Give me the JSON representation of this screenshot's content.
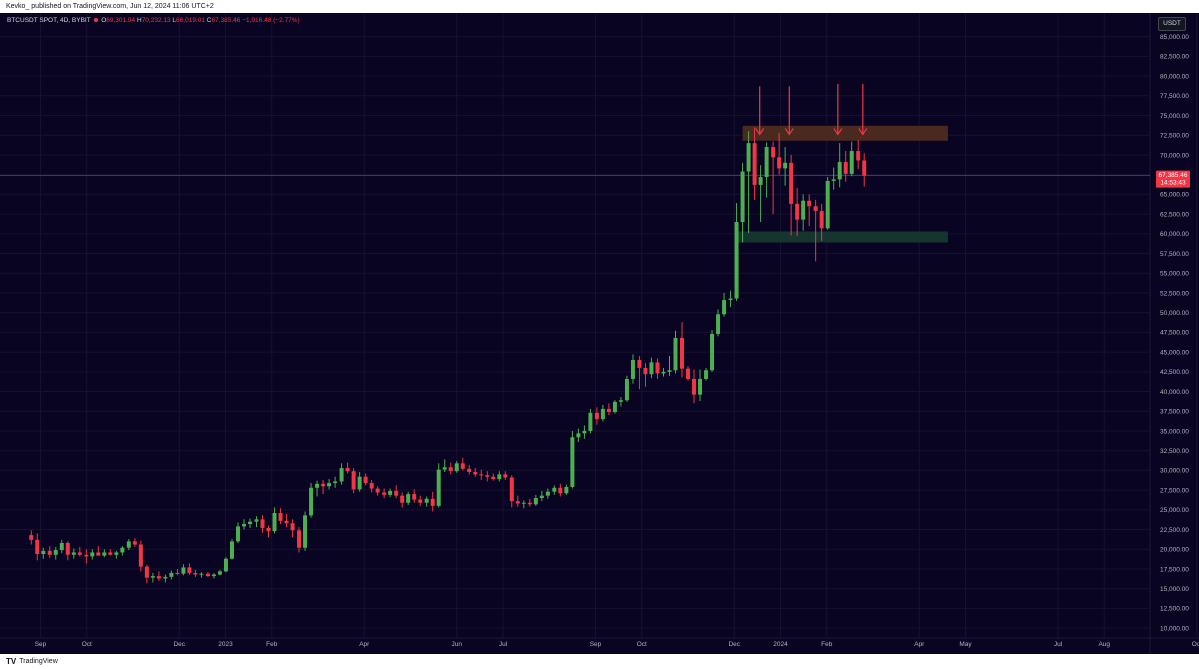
{
  "header": {
    "publisher": "Kevko_ published on TradingView.com, Jun 12, 2024 11:06 UTC+2"
  },
  "legend": {
    "symbol": "BTCUSDT SPOT, 4D, BYBIT",
    "o_label": "O",
    "o_value": "69,301.94",
    "h_label": "H",
    "h_value": "70,232.13",
    "l_label": "L",
    "l_value": "66,019.01",
    "c_label": "C",
    "c_value": "67,385.46",
    "change": "−1,916.48 (−2.77%)"
  },
  "currency_button": "USDT",
  "last_price": {
    "value": "67,385.46",
    "countdown": "14:53:43"
  },
  "footer": {
    "logo_mark": "TV",
    "logo_text": "TradingView"
  },
  "colors": {
    "background": "#080422",
    "up": "#4caf50",
    "down": "#f23645",
    "resistance_zone": "#4a2a1f",
    "support_zone": "#16352f",
    "arrows": "#f23645"
  },
  "chart_data": {
    "type": "candlestick",
    "symbol": "BTCUSDT",
    "timeframe": "4D",
    "ylim": [
      8750,
      88000
    ],
    "y_ticks": [
      10000,
      12500,
      15000,
      17500,
      20000,
      22500,
      25000,
      27500,
      30000,
      32500,
      35000,
      37500,
      40000,
      42500,
      45000,
      47500,
      50000,
      52500,
      55000,
      57500,
      60000,
      62500,
      65000,
      67500,
      70000,
      72500,
      75000,
      77500,
      80000,
      82500,
      85000
    ],
    "y_tick_labels": [
      "10,000.00",
      "12,500.00",
      "15,000.00",
      "17,500.00",
      "20,000.00",
      "22,500.00",
      "25,000.00",
      "27,500.00",
      "30,000.00",
      "32,500.00",
      "35,000.00",
      "37,500.00",
      "40,000.00",
      "42,500.00",
      "45,000.00",
      "47,500.00",
      "50,000.00",
      "52,500.00",
      "55,000.00",
      "57,500.00",
      "60,000.00",
      "62,500.00",
      "65,000.00",
      "67,500.00",
      "70,000.00",
      "72,500.00",
      "75,000.00",
      "77,500.00",
      "80,000.00",
      "82,500.00",
      "85,000.00"
    ],
    "x_labels": [
      {
        "label": "Sep",
        "month": 0
      },
      {
        "label": "Oct",
        "month": 1
      },
      {
        "label": "Dec",
        "month": 3
      },
      {
        "label": "2023",
        "month": 4
      },
      {
        "label": "Feb",
        "month": 5
      },
      {
        "label": "Apr",
        "month": 7
      },
      {
        "label": "Jun",
        "month": 9
      },
      {
        "label": "Jul",
        "month": 10
      },
      {
        "label": "Sep",
        "month": 12
      },
      {
        "label": "Oct",
        "month": 13
      },
      {
        "label": "Dec",
        "month": 15
      },
      {
        "label": "2024",
        "month": 16
      },
      {
        "label": "Feb",
        "month": 17
      },
      {
        "label": "Apr",
        "month": 19
      },
      {
        "label": "May",
        "month": 20
      },
      {
        "label": "Jul",
        "month": 22
      },
      {
        "label": "Aug",
        "month": 23
      },
      {
        "label": "Oct",
        "month": 25
      }
    ],
    "x_month_start": "2022-09",
    "candles": [
      {
        "m": -0.2,
        "o": 21800,
        "h": 22400,
        "l": 20600,
        "c": 21200
      },
      {
        "m": -0.07,
        "o": 21200,
        "h": 22000,
        "l": 18600,
        "c": 19400
      },
      {
        "m": 0.06,
        "o": 19400,
        "h": 20200,
        "l": 18800,
        "c": 19800
      },
      {
        "m": 0.2,
        "o": 19800,
        "h": 20400,
        "l": 18900,
        "c": 19300
      },
      {
        "m": 0.33,
        "o": 19300,
        "h": 20300,
        "l": 18700,
        "c": 19900
      },
      {
        "m": 0.46,
        "o": 19900,
        "h": 21200,
        "l": 19500,
        "c": 20800
      },
      {
        "m": 0.59,
        "o": 20800,
        "h": 21000,
        "l": 18600,
        "c": 19300
      },
      {
        "m": 0.72,
        "o": 19300,
        "h": 20100,
        "l": 18800,
        "c": 19600
      },
      {
        "m": 0.85,
        "o": 19600,
        "h": 20300,
        "l": 19100,
        "c": 19300
      },
      {
        "m": 0.99,
        "o": 19300,
        "h": 20000,
        "l": 18200,
        "c": 19100
      },
      {
        "m": 1.12,
        "o": 19100,
        "h": 20000,
        "l": 18700,
        "c": 19600
      },
      {
        "m": 1.25,
        "o": 19600,
        "h": 20400,
        "l": 19200,
        "c": 19200
      },
      {
        "m": 1.38,
        "o": 19200,
        "h": 20000,
        "l": 19000,
        "c": 19600
      },
      {
        "m": 1.51,
        "o": 19600,
        "h": 20000,
        "l": 19200,
        "c": 19300
      },
      {
        "m": 1.64,
        "o": 19300,
        "h": 19800,
        "l": 18800,
        "c": 19600
      },
      {
        "m": 1.77,
        "o": 19600,
        "h": 20400,
        "l": 19200,
        "c": 20200
      },
      {
        "m": 1.91,
        "o": 20200,
        "h": 21300,
        "l": 19900,
        "c": 21000
      },
      {
        "m": 2.04,
        "o": 21000,
        "h": 21400,
        "l": 20300,
        "c": 20600
      },
      {
        "m": 2.17,
        "o": 20600,
        "h": 21100,
        "l": 17200,
        "c": 17800
      },
      {
        "m": 2.3,
        "o": 17800,
        "h": 18000,
        "l": 15700,
        "c": 16400
      },
      {
        "m": 2.43,
        "o": 16400,
        "h": 17000,
        "l": 15800,
        "c": 16600
      },
      {
        "m": 2.56,
        "o": 16600,
        "h": 17200,
        "l": 16000,
        "c": 16300
      },
      {
        "m": 2.7,
        "o": 16300,
        "h": 16800,
        "l": 15800,
        "c": 16500
      },
      {
        "m": 2.83,
        "o": 16500,
        "h": 17300,
        "l": 16200,
        "c": 17000
      },
      {
        "m": 2.96,
        "o": 17000,
        "h": 17500,
        "l": 16700,
        "c": 16900
      },
      {
        "m": 3.09,
        "o": 16900,
        "h": 18100,
        "l": 16700,
        "c": 17700
      },
      {
        "m": 3.22,
        "o": 17700,
        "h": 18200,
        "l": 16800,
        "c": 17000
      },
      {
        "m": 3.35,
        "o": 17000,
        "h": 17400,
        "l": 16500,
        "c": 16800
      },
      {
        "m": 3.48,
        "o": 16800,
        "h": 17100,
        "l": 16400,
        "c": 16900
      },
      {
        "m": 3.62,
        "o": 16900,
        "h": 17100,
        "l": 16500,
        "c": 16600
      },
      {
        "m": 3.75,
        "o": 16600,
        "h": 17000,
        "l": 16300,
        "c": 16800
      },
      {
        "m": 3.88,
        "o": 16800,
        "h": 17400,
        "l": 16700,
        "c": 17200
      },
      {
        "m": 4.01,
        "o": 17200,
        "h": 19000,
        "l": 17100,
        "c": 18800
      },
      {
        "m": 4.14,
        "o": 18800,
        "h": 21300,
        "l": 18700,
        "c": 21000
      },
      {
        "m": 4.27,
        "o": 21000,
        "h": 23400,
        "l": 20800,
        "c": 22900
      },
      {
        "m": 4.4,
        "o": 22900,
        "h": 23800,
        "l": 22500,
        "c": 23200
      },
      {
        "m": 4.53,
        "o": 23200,
        "h": 23900,
        "l": 22700,
        "c": 23500
      },
      {
        "m": 4.67,
        "o": 23500,
        "h": 24200,
        "l": 22800,
        "c": 23800
      },
      {
        "m": 4.8,
        "o": 23800,
        "h": 24300,
        "l": 22100,
        "c": 22700
      },
      {
        "m": 4.93,
        "o": 22700,
        "h": 23000,
        "l": 21500,
        "c": 22300
      },
      {
        "m": 5.06,
        "o": 22300,
        "h": 25300,
        "l": 22000,
        "c": 24600
      },
      {
        "m": 5.19,
        "o": 24600,
        "h": 25200,
        "l": 23200,
        "c": 23600
      },
      {
        "m": 5.32,
        "o": 23600,
        "h": 24500,
        "l": 22800,
        "c": 23300
      },
      {
        "m": 5.45,
        "o": 23300,
        "h": 23800,
        "l": 21500,
        "c": 22400
      },
      {
        "m": 5.59,
        "o": 22400,
        "h": 22800,
        "l": 19600,
        "c": 20200
      },
      {
        "m": 5.72,
        "o": 20200,
        "h": 24800,
        "l": 19800,
        "c": 24300
      },
      {
        "m": 5.85,
        "o": 24300,
        "h": 28400,
        "l": 24000,
        "c": 27800
      },
      {
        "m": 5.98,
        "o": 27800,
        "h": 28700,
        "l": 26700,
        "c": 28300
      },
      {
        "m": 6.11,
        "o": 28300,
        "h": 28800,
        "l": 27000,
        "c": 28000
      },
      {
        "m": 6.24,
        "o": 28000,
        "h": 28900,
        "l": 27600,
        "c": 28400
      },
      {
        "m": 6.37,
        "o": 28400,
        "h": 29200,
        "l": 27800,
        "c": 28600
      },
      {
        "m": 6.51,
        "o": 28600,
        "h": 30900,
        "l": 28200,
        "c": 30300
      },
      {
        "m": 6.64,
        "o": 30300,
        "h": 31000,
        "l": 29600,
        "c": 29900
      },
      {
        "m": 6.77,
        "o": 29900,
        "h": 30300,
        "l": 27100,
        "c": 27600
      },
      {
        "m": 6.9,
        "o": 27600,
        "h": 29800,
        "l": 27300,
        "c": 29200
      },
      {
        "m": 7.03,
        "o": 29200,
        "h": 29600,
        "l": 28100,
        "c": 28400
      },
      {
        "m": 7.16,
        "o": 28400,
        "h": 28800,
        "l": 27200,
        "c": 27700
      },
      {
        "m": 7.29,
        "o": 27700,
        "h": 28000,
        "l": 26800,
        "c": 27200
      },
      {
        "m": 7.43,
        "o": 27200,
        "h": 27700,
        "l": 26500,
        "c": 26900
      },
      {
        "m": 7.56,
        "o": 26900,
        "h": 27700,
        "l": 26600,
        "c": 27400
      },
      {
        "m": 7.69,
        "o": 27400,
        "h": 28100,
        "l": 26500,
        "c": 26800
      },
      {
        "m": 7.82,
        "o": 26800,
        "h": 27200,
        "l": 25300,
        "c": 25900
      },
      {
        "m": 7.95,
        "o": 25900,
        "h": 27300,
        "l": 25600,
        "c": 27000
      },
      {
        "m": 8.08,
        "o": 27000,
        "h": 27600,
        "l": 25900,
        "c": 26300
      },
      {
        "m": 8.21,
        "o": 26300,
        "h": 26800,
        "l": 25500,
        "c": 25900
      },
      {
        "m": 8.35,
        "o": 25900,
        "h": 26700,
        "l": 25400,
        "c": 26400
      },
      {
        "m": 8.48,
        "o": 26400,
        "h": 27300,
        "l": 24800,
        "c": 25500
      },
      {
        "m": 8.61,
        "o": 25500,
        "h": 30900,
        "l": 25300,
        "c": 30100
      },
      {
        "m": 8.74,
        "o": 30100,
        "h": 31400,
        "l": 29800,
        "c": 30400
      },
      {
        "m": 8.87,
        "o": 30400,
        "h": 31000,
        "l": 29500,
        "c": 29900
      },
      {
        "m": 9.0,
        "o": 29900,
        "h": 31200,
        "l": 29700,
        "c": 30900
      },
      {
        "m": 9.13,
        "o": 30900,
        "h": 31600,
        "l": 30000,
        "c": 30200
      },
      {
        "m": 9.27,
        "o": 30200,
        "h": 30700,
        "l": 29500,
        "c": 29800
      },
      {
        "m": 9.4,
        "o": 29800,
        "h": 30300,
        "l": 29200,
        "c": 29500
      },
      {
        "m": 9.53,
        "o": 29500,
        "h": 30100,
        "l": 28800,
        "c": 29400
      },
      {
        "m": 9.66,
        "o": 29400,
        "h": 29900,
        "l": 28600,
        "c": 29200
      },
      {
        "m": 9.79,
        "o": 29200,
        "h": 29600,
        "l": 28700,
        "c": 28900
      },
      {
        "m": 9.92,
        "o": 28900,
        "h": 29900,
        "l": 28600,
        "c": 29500
      },
      {
        "m": 10.05,
        "o": 29500,
        "h": 29900,
        "l": 28800,
        "c": 29100
      },
      {
        "m": 10.19,
        "o": 29100,
        "h": 29400,
        "l": 25300,
        "c": 26100
      },
      {
        "m": 10.32,
        "o": 26100,
        "h": 26800,
        "l": 25400,
        "c": 25800
      },
      {
        "m": 10.45,
        "o": 25800,
        "h": 26200,
        "l": 25200,
        "c": 25900
      },
      {
        "m": 10.58,
        "o": 25900,
        "h": 26400,
        "l": 25400,
        "c": 25700
      },
      {
        "m": 10.71,
        "o": 25700,
        "h": 26900,
        "l": 25500,
        "c": 26500
      },
      {
        "m": 10.84,
        "o": 26500,
        "h": 27400,
        "l": 26100,
        "c": 26800
      },
      {
        "m": 10.97,
        "o": 26800,
        "h": 27700,
        "l": 26400,
        "c": 27300
      },
      {
        "m": 11.11,
        "o": 27300,
        "h": 28100,
        "l": 26900,
        "c": 27800
      },
      {
        "m": 11.24,
        "o": 27800,
        "h": 28300,
        "l": 26700,
        "c": 27100
      },
      {
        "m": 11.37,
        "o": 27100,
        "h": 28200,
        "l": 26900,
        "c": 27900
      },
      {
        "m": 11.5,
        "o": 27900,
        "h": 35000,
        "l": 27700,
        "c": 34200
      },
      {
        "m": 11.63,
        "o": 34200,
        "h": 35300,
        "l": 33600,
        "c": 34700
      },
      {
        "m": 11.76,
        "o": 34700,
        "h": 35700,
        "l": 34000,
        "c": 35000
      },
      {
        "m": 11.89,
        "o": 35000,
        "h": 37800,
        "l": 34700,
        "c": 37300
      },
      {
        "m": 12.03,
        "o": 37300,
        "h": 38000,
        "l": 35800,
        "c": 36500
      },
      {
        "m": 12.16,
        "o": 36500,
        "h": 38300,
        "l": 36200,
        "c": 37800
      },
      {
        "m": 12.29,
        "o": 37800,
        "h": 38500,
        "l": 37000,
        "c": 37400
      },
      {
        "m": 12.42,
        "o": 37400,
        "h": 38900,
        "l": 37200,
        "c": 38700
      },
      {
        "m": 12.55,
        "o": 38700,
        "h": 39300,
        "l": 38100,
        "c": 38900
      },
      {
        "m": 12.68,
        "o": 38900,
        "h": 42000,
        "l": 38700,
        "c": 41600
      },
      {
        "m": 12.81,
        "o": 41600,
        "h": 44700,
        "l": 41000,
        "c": 44000
      },
      {
        "m": 12.95,
        "o": 44000,
        "h": 44500,
        "l": 40300,
        "c": 43000
      },
      {
        "m": 13.08,
        "o": 43000,
        "h": 43600,
        "l": 40600,
        "c": 42200
      },
      {
        "m": 13.21,
        "o": 42200,
        "h": 44300,
        "l": 41700,
        "c": 43700
      },
      {
        "m": 13.34,
        "o": 43700,
        "h": 44200,
        "l": 41600,
        "c": 42300
      },
      {
        "m": 13.47,
        "o": 42300,
        "h": 43000,
        "l": 41900,
        "c": 42500
      },
      {
        "m": 13.6,
        "o": 42500,
        "h": 44500,
        "l": 42000,
        "c": 42700
      },
      {
        "m": 13.73,
        "o": 42700,
        "h": 47700,
        "l": 42300,
        "c": 46800
      },
      {
        "m": 13.87,
        "o": 46800,
        "h": 48800,
        "l": 41800,
        "c": 42900
      },
      {
        "m": 14.0,
        "o": 42900,
        "h": 43200,
        "l": 41400,
        "c": 41600
      },
      {
        "m": 14.13,
        "o": 41600,
        "h": 42800,
        "l": 38500,
        "c": 39600
      },
      {
        "m": 14.26,
        "o": 39600,
        "h": 42800,
        "l": 38800,
        "c": 41600
      },
      {
        "m": 14.39,
        "o": 41600,
        "h": 43000,
        "l": 41400,
        "c": 42700
      },
      {
        "m": 14.52,
        "o": 42700,
        "h": 47800,
        "l": 42500,
        "c": 47300
      },
      {
        "m": 14.65,
        "o": 47300,
        "h": 50400,
        "l": 47000,
        "c": 49800
      },
      {
        "m": 14.78,
        "o": 49800,
        "h": 52500,
        "l": 49500,
        "c": 51600
      },
      {
        "m": 14.92,
        "o": 51600,
        "h": 52800,
        "l": 50700,
        "c": 51800
      },
      {
        "m": 15.05,
        "o": 51800,
        "h": 63900,
        "l": 51500,
        "c": 61500
      },
      {
        "m": 15.18,
        "o": 61500,
        "h": 69000,
        "l": 58900,
        "c": 67900
      },
      {
        "m": 15.31,
        "o": 67900,
        "h": 73000,
        "l": 60100,
        "c": 71500
      },
      {
        "m": 15.44,
        "o": 71500,
        "h": 73500,
        "l": 64300,
        "c": 66200
      },
      {
        "m": 15.57,
        "o": 66200,
        "h": 68700,
        "l": 61500,
        "c": 67200
      },
      {
        "m": 15.7,
        "o": 67200,
        "h": 71600,
        "l": 64600,
        "c": 71000
      },
      {
        "m": 15.84,
        "o": 71000,
        "h": 71700,
        "l": 62500,
        "c": 69700
      },
      {
        "m": 15.97,
        "o": 69700,
        "h": 72800,
        "l": 67500,
        "c": 68300
      },
      {
        "m": 16.1,
        "o": 68300,
        "h": 71000,
        "l": 66100,
        "c": 69000
      },
      {
        "m": 16.23,
        "o": 69000,
        "h": 70000,
        "l": 59800,
        "c": 63800
      },
      {
        "m": 16.36,
        "o": 63800,
        "h": 65800,
        "l": 59700,
        "c": 61800
      },
      {
        "m": 16.49,
        "o": 61800,
        "h": 65000,
        "l": 60400,
        "c": 64200
      },
      {
        "m": 16.62,
        "o": 64200,
        "h": 65000,
        "l": 61000,
        "c": 63500
      },
      {
        "m": 16.76,
        "o": 63500,
        "h": 64300,
        "l": 56500,
        "c": 62900
      },
      {
        "m": 16.89,
        "o": 62900,
        "h": 63800,
        "l": 59100,
        "c": 60700
      },
      {
        "m": 17.02,
        "o": 60700,
        "h": 67200,
        "l": 60500,
        "c": 66700
      },
      {
        "m": 17.15,
        "o": 66700,
        "h": 68400,
        "l": 65600,
        "c": 66900
      },
      {
        "m": 17.28,
        "o": 66900,
        "h": 71500,
        "l": 65900,
        "c": 69100
      },
      {
        "m": 17.41,
        "o": 69100,
        "h": 70500,
        "l": 66600,
        "c": 67600
      },
      {
        "m": 17.54,
        "o": 67600,
        "h": 71700,
        "l": 67300,
        "c": 70500
      },
      {
        "m": 17.68,
        "o": 70500,
        "h": 71900,
        "l": 68200,
        "c": 69300
      },
      {
        "m": 17.81,
        "o": 69300,
        "h": 70200,
        "l": 66000,
        "c": 67400
      }
    ],
    "last_price": 67385.46,
    "zones": [
      {
        "name": "resistance",
        "from_month": 15.18,
        "to_month": 19.62,
        "low": 71800,
        "high": 73700
      },
      {
        "name": "support",
        "from_month": 15.05,
        "to_month": 19.62,
        "low": 58900,
        "high": 60300
      }
    ],
    "arrows": [
      {
        "month": 15.55,
        "tip": 72600,
        "tail": 78700
      },
      {
        "month": 16.19,
        "tip": 72600,
        "tail": 78700
      },
      {
        "month": 17.24,
        "tip": 72600,
        "tail": 79000
      },
      {
        "month": 17.78,
        "tip": 72600,
        "tail": 79000
      }
    ]
  }
}
